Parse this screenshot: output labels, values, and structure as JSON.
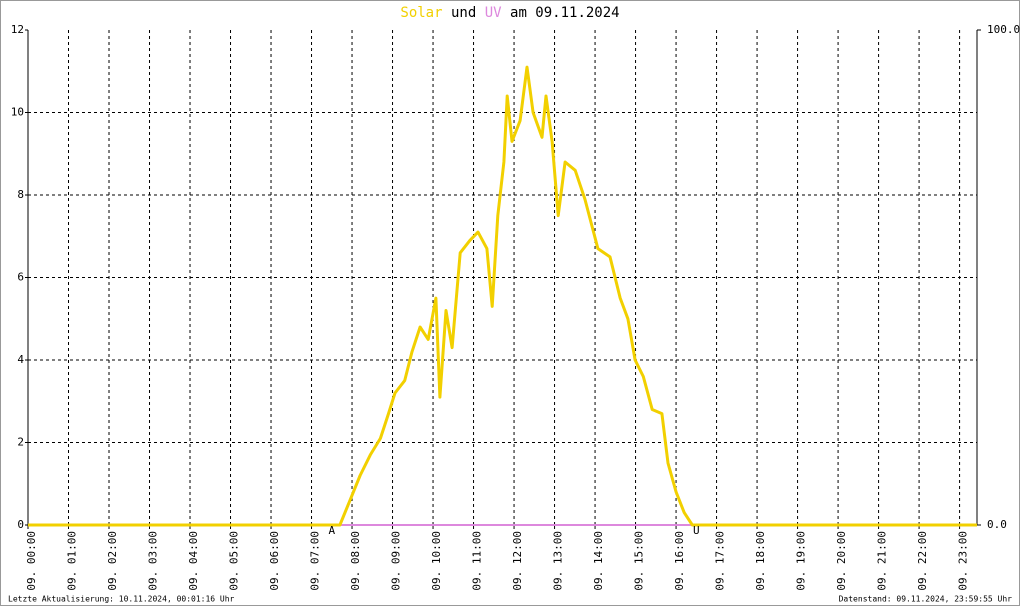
{
  "chart_data": {
    "type": "line",
    "title_connector": "und",
    "title_date": "am 09.11.2024",
    "xlim": [
      0,
      23.43
    ],
    "ylim": [
      0,
      12
    ],
    "yticks": [
      0,
      2,
      4,
      6,
      8,
      10,
      12
    ],
    "y2lim": [
      0,
      100
    ],
    "y2ticks": [
      {
        "value": 0,
        "label": "0.0"
      },
      {
        "value": 100,
        "label": "100.0"
      }
    ],
    "xticks": [
      {
        "value": 0,
        "label": "09. 00:00"
      },
      {
        "value": 1,
        "label": "09. 01:00"
      },
      {
        "value": 2,
        "label": "09. 02:00"
      },
      {
        "value": 3,
        "label": "09. 03:00"
      },
      {
        "value": 4,
        "label": "09. 04:00"
      },
      {
        "value": 5,
        "label": "09. 05:00"
      },
      {
        "value": 6,
        "label": "09. 06:00"
      },
      {
        "value": 7,
        "label": "09. 07:00"
      },
      {
        "value": 8,
        "label": "09. 08:00"
      },
      {
        "value": 9,
        "label": "09. 09:00"
      },
      {
        "value": 10,
        "label": "09. 10:00"
      },
      {
        "value": 11,
        "label": "09. 11:00"
      },
      {
        "value": 12,
        "label": "09. 12:00"
      },
      {
        "value": 13,
        "label": "09. 13:00"
      },
      {
        "value": 14,
        "label": "09. 14:00"
      },
      {
        "value": 15,
        "label": "09. 15:00"
      },
      {
        "value": 16,
        "label": "09. 16:00"
      },
      {
        "value": 17,
        "label": "09. 17:00"
      },
      {
        "value": 18,
        "label": "09. 18:00"
      },
      {
        "value": 19,
        "label": "09. 19:00"
      },
      {
        "value": 20,
        "label": "09. 20:00"
      },
      {
        "value": 21,
        "label": "09. 21:00"
      },
      {
        "value": 22,
        "label": "09. 22:00"
      },
      {
        "value": 23,
        "label": "09. 23:00"
      }
    ],
    "grid": true,
    "series": [
      {
        "name": "UV",
        "color": "#dd88dd",
        "axis": "y2",
        "x": [
          0,
          23.43
        ],
        "values": [
          0,
          0
        ]
      },
      {
        "name": "Solar",
        "color": "#f2d000",
        "x": [
          0,
          7.7,
          7.95,
          8.2,
          8.45,
          8.7,
          8.9,
          9.06,
          9.3,
          9.48,
          9.68,
          9.88,
          10.07,
          10.17,
          10.32,
          10.47,
          10.67,
          10.91,
          11.11,
          11.33,
          11.46,
          11.6,
          11.75,
          11.83,
          11.95,
          12.15,
          12.32,
          12.47,
          12.69,
          12.79,
          12.94,
          13.09,
          13.26,
          13.51,
          13.75,
          14.07,
          14.37,
          14.62,
          14.81,
          14.99,
          15.19,
          15.41,
          15.65,
          15.8,
          16.0,
          16.2,
          16.4,
          23.43
        ],
        "values": [
          0,
          0,
          0.6,
          1.2,
          1.7,
          2.1,
          2.7,
          3.2,
          3.5,
          4.2,
          4.8,
          4.5,
          5.5,
          3.1,
          5.2,
          4.3,
          6.6,
          6.9,
          7.1,
          6.7,
          5.3,
          7.5,
          8.8,
          10.4,
          9.3,
          9.8,
          11.1,
          10.0,
          9.4,
          10.4,
          9.3,
          7.5,
          8.8,
          8.6,
          7.9,
          6.7,
          6.5,
          5.5,
          5.0,
          4.0,
          3.6,
          2.8,
          2.7,
          1.5,
          0.8,
          0.3,
          0,
          0
        ]
      }
    ],
    "annotations": [
      {
        "text": "A",
        "x": 7.5,
        "color": "#cc2222"
      },
      {
        "text": "U",
        "x": 16.5,
        "color": "#aa33aa"
      }
    ],
    "footer_left": "Letzte Aktualisierung: 10.11.2024, 00:01:16 Uhr",
    "footer_right": "Datenstand: 09.11.2024, 23:59:55 Uhr"
  }
}
